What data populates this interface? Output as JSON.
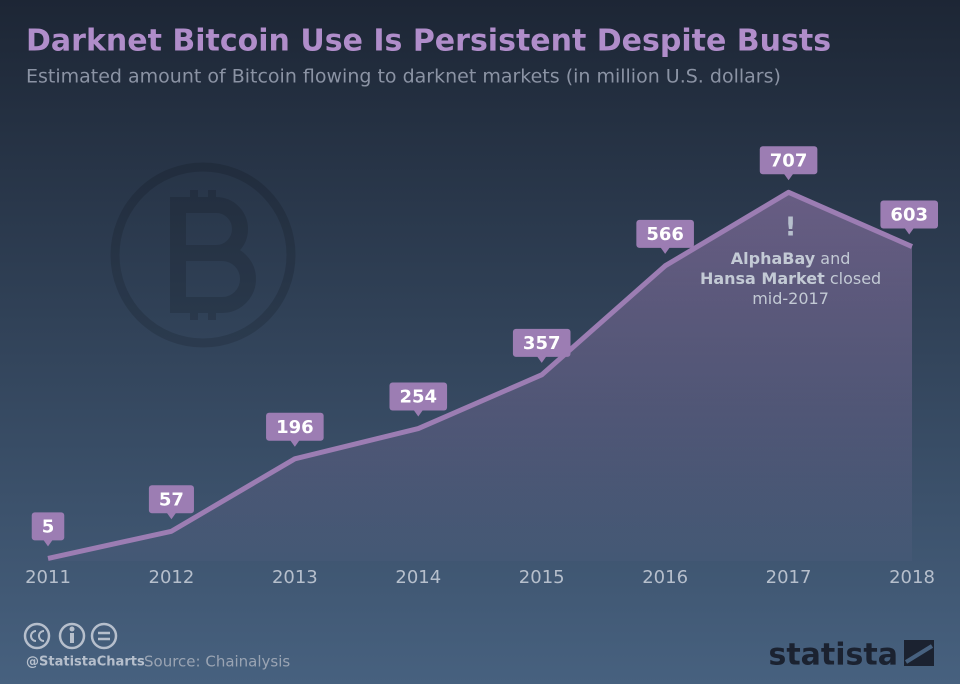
{
  "chart_data": {
    "type": "area",
    "title": "Darknet Bitcoin Use Is Persistent Despite Busts",
    "subtitle": "Estimated amount of Bitcoin flowing to darknet markets (in million U.S. dollars)",
    "categories": [
      "2011",
      "2012",
      "2013",
      "2014",
      "2015",
      "2016",
      "2017",
      "2018"
    ],
    "values": [
      5,
      57,
      196,
      254,
      357,
      566,
      707,
      603
    ],
    "color": "#9c7db3",
    "annotation": {
      "mark": "!",
      "lines": [
        [
          {
            "text": "AlphaBay",
            "bold": true
          },
          {
            "text": " and",
            "bold": false
          }
        ],
        [
          {
            "text": "Hansa Market",
            "bold": true
          },
          {
            "text": " closed",
            "bold": false
          }
        ],
        [
          {
            "text": "mid-2017",
            "bold": false
          }
        ]
      ]
    },
    "credit": "@StatistaCharts",
    "source": "Source: Chainalysis",
    "logo": "statista"
  }
}
